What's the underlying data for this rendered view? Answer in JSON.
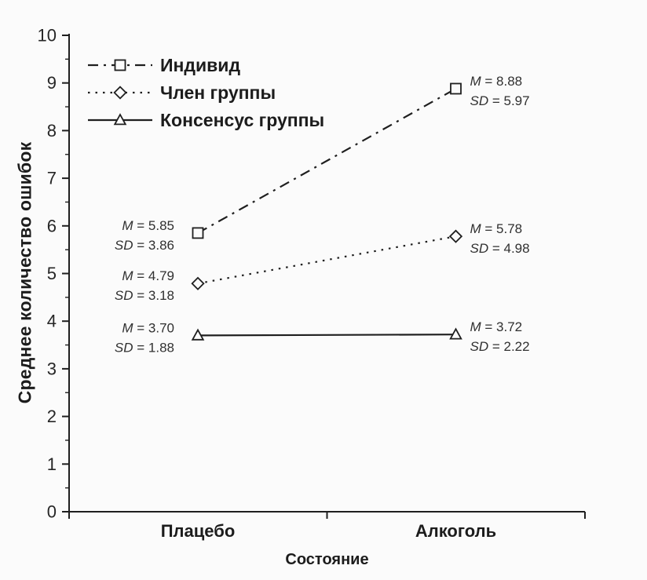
{
  "chart_data": {
    "type": "line",
    "title": "",
    "xlabel": "Состояние",
    "ylabel": "Среднее количество ошибок",
    "categories": [
      "Плацебо",
      "Алкоголь"
    ],
    "series": [
      {
        "name": "Индивид",
        "values": [
          5.85,
          8.88
        ],
        "sd": [
          3.86,
          5.97
        ],
        "marker": "square",
        "linestyle": "dashdot"
      },
      {
        "name": "Член группы",
        "values": [
          4.79,
          5.78
        ],
        "sd": [
          3.18,
          4.98
        ],
        "marker": "diamond",
        "linestyle": "dotted"
      },
      {
        "name": "Консенсус группы",
        "values": [
          3.7,
          3.72
        ],
        "sd": [
          1.88,
          2.22
        ],
        "marker": "triangle",
        "linestyle": "solid"
      }
    ],
    "annotations": [
      {
        "series": 0,
        "point": 0,
        "side": "left",
        "text_m": "M = 5.85",
        "text_sd": "SD = 3.86"
      },
      {
        "series": 0,
        "point": 1,
        "side": "right",
        "text_m": "M = 8.88",
        "text_sd": "SD = 5.97"
      },
      {
        "series": 1,
        "point": 0,
        "side": "left",
        "text_m": "M = 4.79",
        "text_sd": "SD = 3.18"
      },
      {
        "series": 1,
        "point": 1,
        "side": "right",
        "text_m": "M = 5.78",
        "text_sd": "SD = 4.98"
      },
      {
        "series": 2,
        "point": 0,
        "side": "left",
        "text_m": "M = 3.70",
        "text_sd": "SD = 1.88"
      },
      {
        "series": 2,
        "point": 1,
        "side": "right",
        "text_m": "M = 3.72",
        "text_sd": "SD = 2.22"
      }
    ],
    "ylim": [
      0,
      10
    ],
    "ytick_step": 1,
    "minor_ticks": true,
    "grid": false,
    "legend_position": "top-left",
    "axis_color": "#1f1f1f",
    "text_color": "#1c1c1c",
    "background": "#fbfbfb"
  }
}
